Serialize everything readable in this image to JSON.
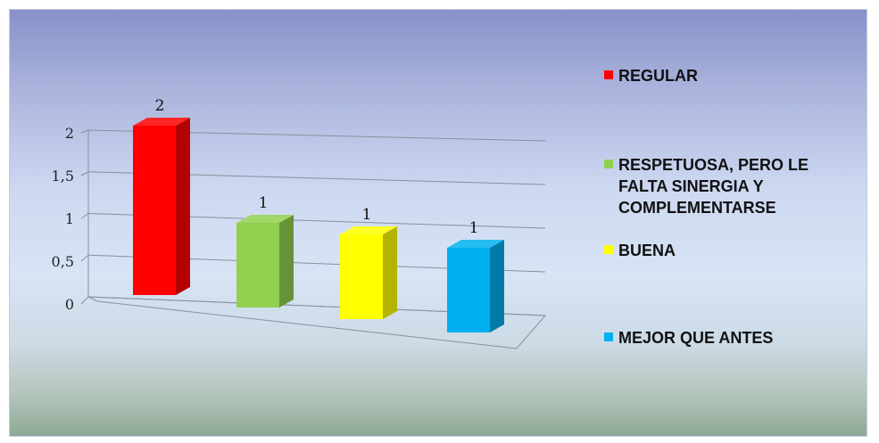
{
  "chart_data": {
    "type": "bar",
    "title": "",
    "xlabel": "",
    "ylabel": "",
    "ylim": [
      0,
      2
    ],
    "yticks": [
      "0",
      "0,5",
      "1",
      "1,5",
      "2"
    ],
    "categories": [
      "REGULAR",
      "RESPETUOSA, PERO LE\nFALTA SINERGIA Y\nCOMPLEMENTARSE",
      "BUENA",
      "MEJOR QUE ANTES"
    ],
    "values": [
      2,
      1,
      1,
      1
    ],
    "data_labels": [
      "2",
      "1",
      "1",
      "1"
    ],
    "colors": [
      "#ff0000",
      "#92d050",
      "#ffff00",
      "#00b0f0"
    ],
    "grid": true,
    "legend_position": "right",
    "style": "3d-column"
  },
  "legend": {
    "items": [
      {
        "label": "REGULAR",
        "color": "#ff0000"
      },
      {
        "label": "RESPETUOSA, PERO LE\nFALTA SINERGIA Y\nCOMPLEMENTARSE",
        "color": "#92d050"
      },
      {
        "label": "BUENA",
        "color": "#ffff00"
      },
      {
        "label": "MEJOR QUE ANTES",
        "color": "#00b0f0"
      }
    ]
  }
}
